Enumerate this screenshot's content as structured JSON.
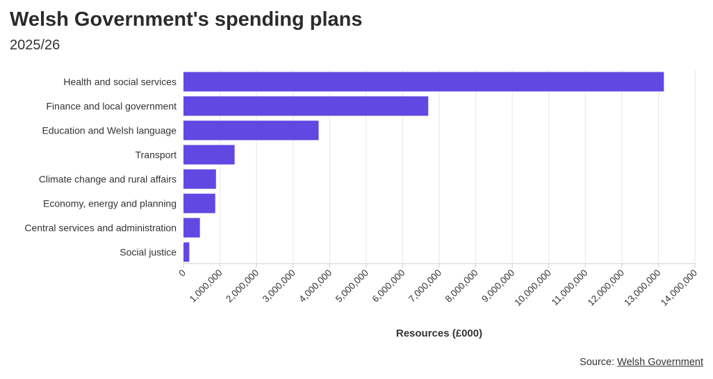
{
  "chart_data": {
    "type": "bar",
    "orientation": "horizontal",
    "title": "Welsh Government's spending plans",
    "subtitle": "2025/26",
    "xlabel": "Resources (£000)",
    "ylabel": "",
    "categories": [
      "Health and social services",
      "Finance and local government",
      "Education and Welsh language",
      "Transport",
      "Climate change and rural affairs",
      "Economy, energy and planning",
      "Central services and administration",
      "Social justice"
    ],
    "values": [
      13150000,
      6700000,
      3700000,
      1400000,
      890000,
      870000,
      450000,
      160000
    ],
    "xlim": [
      0,
      14000000
    ],
    "ticks": [
      0,
      1000000,
      2000000,
      3000000,
      4000000,
      5000000,
      6000000,
      7000000,
      8000000,
      9000000,
      10000000,
      11000000,
      12000000,
      13000000,
      14000000
    ],
    "tick_labels": [
      "0",
      "1,000,000",
      "2,000,000",
      "3,000,000",
      "4,000,000",
      "5,000,000",
      "6,000,000",
      "7,000,000",
      "8,000,000",
      "9,000,000",
      "10,000,000",
      "11,000,000",
      "12,000,000",
      "13,000,000",
      "14,000,000"
    ],
    "grid": true,
    "bar_color": "#5a3ee0",
    "grid_color": "#e6e6e6",
    "axis_color": "#cccccc"
  },
  "source": {
    "prefix": "Source: ",
    "link_text": "Welsh Government"
  }
}
